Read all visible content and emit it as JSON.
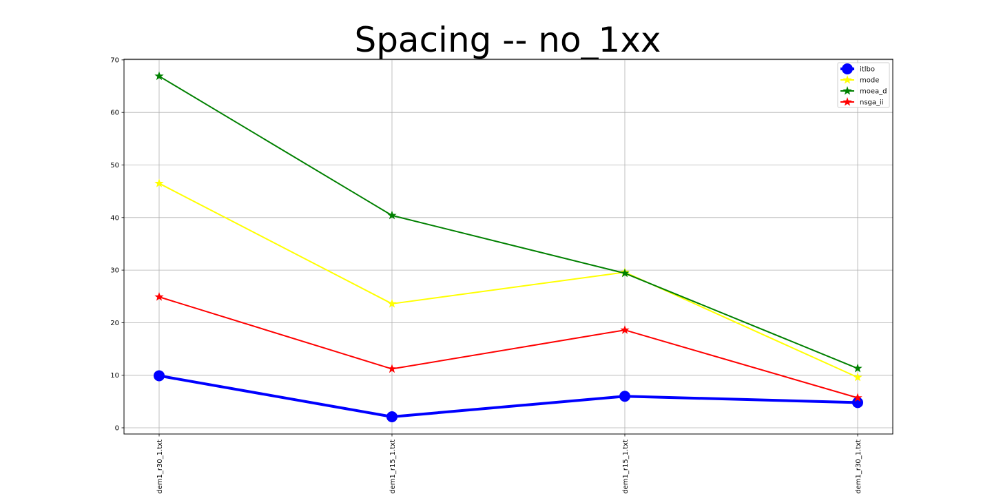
{
  "chart_data": {
    "type": "line",
    "title": "Spacing -- no_1xx",
    "xlabel": "",
    "ylabel": "",
    "categories": [
      "dem1_r30_1.txt",
      "dem1_r15_1.txt",
      "dem1_r15_1.txt",
      "dem1_r30_1.txt"
    ],
    "ylim": [
      -1,
      70
    ],
    "yticks": [
      0,
      10,
      20,
      30,
      40,
      50,
      60,
      70
    ],
    "grid": true,
    "legend_position": "top-right",
    "series": [
      {
        "name": "itlbo",
        "color": "#0000ff",
        "marker": "circle",
        "values": [
          9.9,
          2.1,
          6.0,
          4.8
        ]
      },
      {
        "name": "mode",
        "color": "#ffff00",
        "marker": "star",
        "values": [
          46.5,
          23.6,
          29.6,
          9.6
        ]
      },
      {
        "name": "moea_d",
        "color": "#008000",
        "marker": "star",
        "values": [
          66.9,
          40.4,
          29.4,
          11.3
        ]
      },
      {
        "name": "nsga_ii",
        "color": "#ff0000",
        "marker": "star",
        "values": [
          24.9,
          11.2,
          18.6,
          5.7
        ]
      }
    ]
  }
}
